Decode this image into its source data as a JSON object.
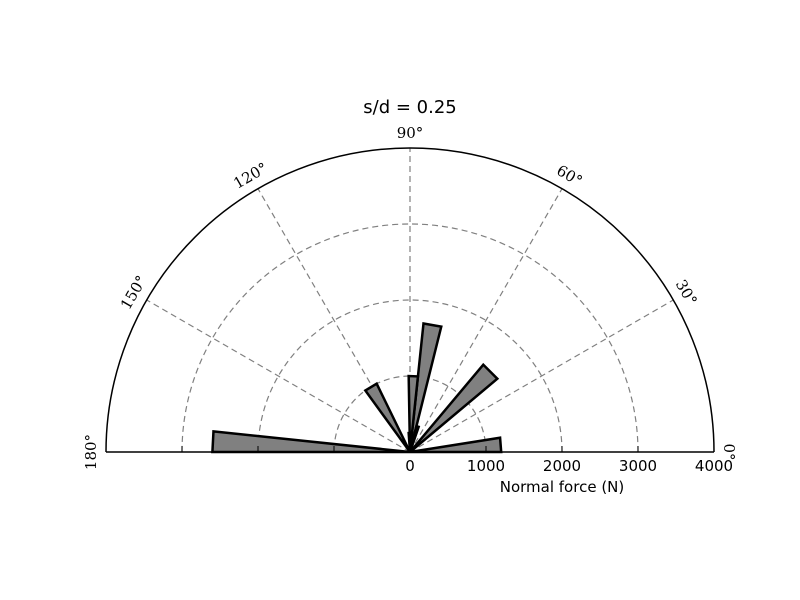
{
  "chart_data": {
    "type": "polar-bar",
    "title": "s/d = 0.25",
    "xlabel": "Normal force (N)",
    "radial_range": [
      0,
      4000
    ],
    "radial_ticks": [
      0,
      1000,
      2000,
      3000,
      4000
    ],
    "radial_tick_labels": [
      "0",
      "1000",
      "2000",
      "3000",
      "4000"
    ],
    "angular_range_deg": [
      0,
      180
    ],
    "angular_ticks_deg": [
      0,
      30,
      60,
      90,
      120,
      150,
      180
    ],
    "angular_tick_labels": [
      "0°",
      "30°",
      "60°",
      "90°",
      "120°",
      "150°",
      "180°"
    ],
    "grid": true,
    "bars": [
      {
        "theta1": 0,
        "theta2": 9,
        "r": 1200
      },
      {
        "theta1": 40,
        "theta2": 50,
        "r": 1500
      },
      {
        "theta1": 76,
        "theta2": 84,
        "r": 1700
      },
      {
        "theta1": 84,
        "theta2": 91,
        "r": 1000
      },
      {
        "theta1": 116,
        "theta2": 126,
        "r": 1000
      },
      {
        "theta1": 174,
        "theta2": 180,
        "r": 2600
      },
      {
        "theta1": 71,
        "theta2": 76,
        "r": 350
      },
      {
        "theta1": 91,
        "theta2": 94,
        "r": 250
      }
    ]
  }
}
